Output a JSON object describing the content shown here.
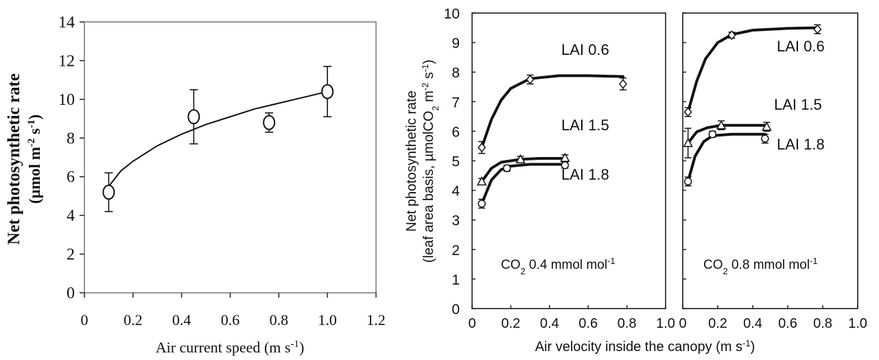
{
  "chart_data": [
    {
      "type": "scatter",
      "xlabel": "Air current speed",
      "xunit": "(m s",
      "xunit_sup": "-1",
      "xunit_close": ")",
      "ylabel_line1": "Net photosynthetic rate",
      "ylabel_line2": "(µmol m",
      "ylabel_line2_sup1": "-2",
      "ylabel_line2_mid": " s",
      "ylabel_line2_sup2": "-1",
      "ylabel_line2_close": ")",
      "xlim": [
        0,
        1.2
      ],
      "ylim": [
        0,
        14
      ],
      "xticks": [
        "0",
        "0.2",
        "0.4",
        "0.6",
        "0.8",
        "1.0",
        "1.2"
      ],
      "yticks": [
        "0",
        "2",
        "4",
        "6",
        "8",
        "10",
        "12",
        "14"
      ],
      "points": [
        {
          "x": 0.1,
          "y": 5.2,
          "err": 1.0
        },
        {
          "x": 0.45,
          "y": 9.1,
          "err": 1.4
        },
        {
          "x": 0.76,
          "y": 8.8,
          "err": 0.5
        },
        {
          "x": 1.0,
          "y": 10.4,
          "err": 1.3
        }
      ],
      "fit": {
        "x": [
          0.1,
          0.15,
          0.2,
          0.3,
          0.4,
          0.5,
          0.6,
          0.7,
          0.8,
          0.9,
          1.0
        ],
        "y": [
          5.5,
          6.3,
          6.8,
          7.6,
          8.2,
          8.7,
          9.1,
          9.5,
          9.8,
          10.1,
          10.4
        ]
      },
      "grid": false
    },
    {
      "type": "line",
      "shared_ylabel_line1": "Net photosynthetic rate",
      "shared_ylabel_line2": "(leaf area basis, µmolCO",
      "shared_ylabel_line2_sub": "2",
      "shared_ylabel_line2_mid": " m",
      "shared_ylabel_line2_sup1": "-2",
      "shared_ylabel_line2_mid2": " s",
      "shared_ylabel_line2_sup2": "-1",
      "shared_ylabel_line2_close": ")",
      "shared_xlabel": "Air velocity inside the canopy (m s",
      "shared_xlabel_sup": "-1",
      "shared_xlabel_close": ")",
      "ylim": [
        0,
        10
      ],
      "xlim": [
        0,
        1.0
      ],
      "yticks": [
        "0",
        "1",
        "2",
        "3",
        "4",
        "5",
        "6",
        "7",
        "8",
        "9",
        "10"
      ],
      "xticks": [
        "0",
        "0.2",
        "0.4",
        "0.6",
        "0.8",
        "1.0"
      ],
      "grid": false,
      "panels": [
        {
          "annotation_pre": "CO",
          "annotation_sub": "2",
          "annotation_post": " 0.4 mmol mol",
          "annotation_sup": "-1",
          "series": [
            {
              "name": "LAI  0.6",
              "marker": "diamond",
              "points": [
                {
                  "x": 0.05,
                  "y": 5.45,
                  "err": 0.2
                },
                {
                  "x": 0.3,
                  "y": 7.75,
                  "err": 0.15
                },
                {
                  "x": 0.78,
                  "y": 7.6,
                  "err": 0.2
                }
              ],
              "fit": [
                [
                  0.05,
                  5.45
                ],
                [
                  0.1,
                  6.4
                ],
                [
                  0.15,
                  7.05
                ],
                [
                  0.2,
                  7.45
                ],
                [
                  0.3,
                  7.78
                ],
                [
                  0.45,
                  7.88
                ],
                [
                  0.6,
                  7.88
                ],
                [
                  0.78,
                  7.85
                ]
              ]
            },
            {
              "name": "LAI  1.5",
              "marker": "triangle",
              "points": [
                {
                  "x": 0.05,
                  "y": 4.3,
                  "err": 0.1
                },
                {
                  "x": 0.25,
                  "y": 5.05,
                  "err": 0.1
                },
                {
                  "x": 0.48,
                  "y": 5.1,
                  "err": 0.1
                }
              ],
              "fit": [
                [
                  0.05,
                  4.3
                ],
                [
                  0.1,
                  4.75
                ],
                [
                  0.15,
                  4.95
                ],
                [
                  0.25,
                  5.05
                ],
                [
                  0.35,
                  5.08
                ],
                [
                  0.48,
                  5.08
                ]
              ]
            },
            {
              "name": "LAI  1.8",
              "marker": "circle",
              "points": [
                {
                  "x": 0.05,
                  "y": 3.55,
                  "err": 0.15
                },
                {
                  "x": 0.18,
                  "y": 4.75,
                  "err": 0.1
                },
                {
                  "x": 0.48,
                  "y": 4.85,
                  "err": 0.1
                }
              ],
              "fit": [
                [
                  0.05,
                  3.55
                ],
                [
                  0.1,
                  4.35
                ],
                [
                  0.15,
                  4.7
                ],
                [
                  0.2,
                  4.82
                ],
                [
                  0.3,
                  4.88
                ],
                [
                  0.48,
                  4.88
                ]
              ]
            }
          ]
        },
        {
          "annotation_pre": "CO",
          "annotation_sub": "2",
          "annotation_post": " 0.8 mmol mol",
          "annotation_sup": "-1",
          "series": [
            {
              "name": "LAI  0.6",
              "marker": "diamond",
              "points": [
                {
                  "x": 0.03,
                  "y": 6.65,
                  "err": 0.15
                },
                {
                  "x": 0.28,
                  "y": 9.25,
                  "err": 0.1
                },
                {
                  "x": 0.77,
                  "y": 9.45,
                  "err": 0.15
                }
              ],
              "fit": [
                [
                  0.03,
                  6.65
                ],
                [
                  0.08,
                  7.7
                ],
                [
                  0.13,
                  8.45
                ],
                [
                  0.2,
                  9.0
                ],
                [
                  0.28,
                  9.27
                ],
                [
                  0.4,
                  9.42
                ],
                [
                  0.6,
                  9.48
                ],
                [
                  0.77,
                  9.5
                ]
              ]
            },
            {
              "name": "LAI  1.5",
              "marker": "triangle",
              "points": [
                {
                  "x": 0.03,
                  "y": 5.6,
                  "err": 0.5
                },
                {
                  "x": 0.22,
                  "y": 6.2,
                  "err": 0.15
                },
                {
                  "x": 0.48,
                  "y": 6.15,
                  "err": 0.15
                }
              ],
              "fit": [
                [
                  0.03,
                  5.6
                ],
                [
                  0.08,
                  5.98
                ],
                [
                  0.14,
                  6.12
                ],
                [
                  0.22,
                  6.2
                ],
                [
                  0.35,
                  6.2
                ],
                [
                  0.48,
                  6.2
                ]
              ]
            },
            {
              "name": "LAI  1.8",
              "marker": "circle",
              "points": [
                {
                  "x": 0.03,
                  "y": 4.3,
                  "err": 0.15
                },
                {
                  "x": 0.17,
                  "y": 5.9,
                  "err": 0.1
                },
                {
                  "x": 0.47,
                  "y": 5.75,
                  "err": 0.15
                }
              ],
              "fit": [
                [
                  0.03,
                  4.3
                ],
                [
                  0.07,
                  5.15
                ],
                [
                  0.12,
                  5.65
                ],
                [
                  0.17,
                  5.85
                ],
                [
                  0.28,
                  5.9
                ],
                [
                  0.47,
                  5.9
                ]
              ]
            }
          ]
        }
      ]
    }
  ]
}
